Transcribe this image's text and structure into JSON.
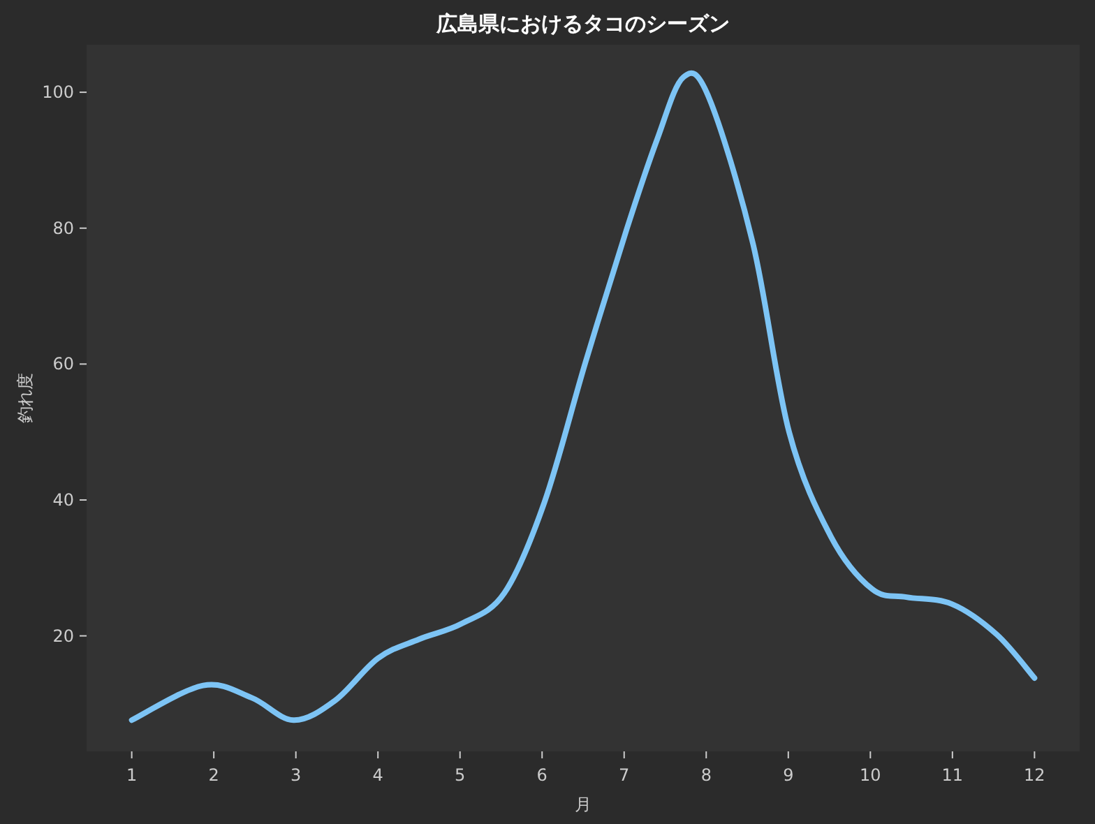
{
  "chart_data": {
    "type": "line",
    "title": "広島県におけるタコのシーズン",
    "xlabel": "月",
    "ylabel": "釣れ度",
    "series": [
      {
        "color": "#7dc4f5",
        "x": [
          1,
          1.87,
          2.46,
          2.97,
          3.48,
          4,
          4.5,
          5.02,
          5.54,
          6.03,
          6.53,
          7.03,
          7.4,
          7.72,
          8.03,
          8.57,
          9.01,
          9.52,
          10.02,
          10.44,
          10.99,
          11.54,
          12
        ],
        "values": [
          7.6,
          12.7,
          10.9,
          7.6,
          10.5,
          16.7,
          19.5,
          21.8,
          26.3,
          39.7,
          60.3,
          79.8,
          93,
          102.2,
          99.3,
          77.7,
          50,
          34.6,
          26.9,
          25.7,
          24.7,
          20.2,
          13.8
        ]
      }
    ],
    "xlim": [
      0.45,
      12.55
    ],
    "ylim": [
      3,
      107
    ],
    "xticks": [
      1,
      2,
      3,
      4,
      5,
      6,
      7,
      8,
      9,
      10,
      11,
      12
    ],
    "yticks": [
      20,
      40,
      60,
      80,
      100
    ],
    "grid": false,
    "marker": "none",
    "line_style": "solid"
  }
}
